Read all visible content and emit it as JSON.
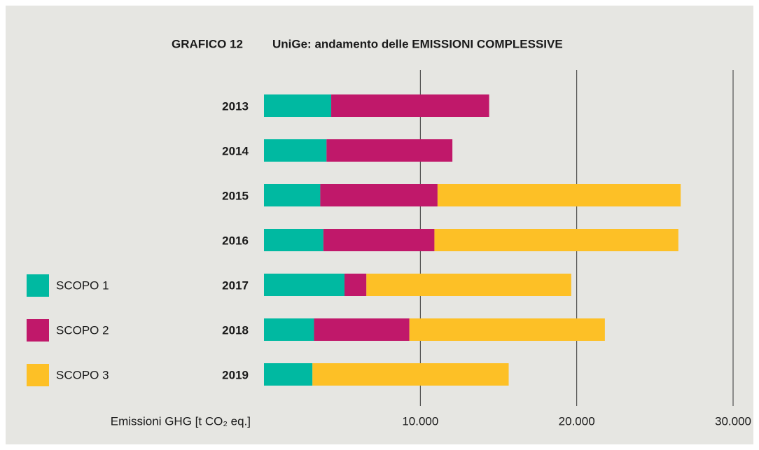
{
  "chart_data": {
    "type": "stacked_bar_horizontal",
    "title": "GRAFICO 12",
    "subtitle": "UniGe: andamento delle EMISSIONI COMPLESSIVE",
    "x_label": "Emissioni GHG [t CO₂ eq.]",
    "categories": [
      "2013",
      "2014",
      "2015",
      "2016",
      "2017",
      "2018",
      "2019"
    ],
    "series": [
      {
        "name": "SCOPO 1",
        "color": "#00b9a1",
        "values": [
          4300,
          4000,
          3600,
          3800,
          5150,
          3200,
          3100
        ]
      },
      {
        "name": "SCOPO 2",
        "color": "#c0186a",
        "values": [
          10100,
          8050,
          7500,
          7100,
          1400,
          6100,
          0
        ]
      },
      {
        "name": "SCOPO 3",
        "color": "#fdc026",
        "values": [
          0,
          0,
          15550,
          15600,
          13100,
          12500,
          12550
        ]
      }
    ],
    "xlim": [
      0,
      30000
    ],
    "xticks": [
      {
        "value": 10000,
        "label": "10.000"
      },
      {
        "value": 20000,
        "label": "20.000"
      },
      {
        "value": 30000,
        "label": "30.000"
      }
    ],
    "grid": true,
    "legend": "left"
  }
}
